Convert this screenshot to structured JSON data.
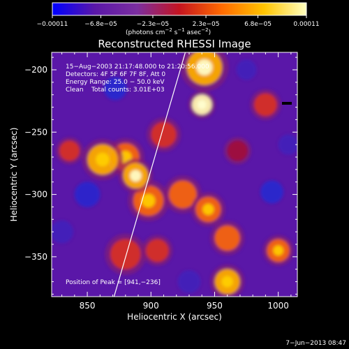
{
  "chart_data": {
    "type": "heatmap",
    "title": "Reconstructed RHESSI Image",
    "xlabel": "Heliocentric X (arcsec)",
    "ylabel": "Heliocentric Y (arcsec)",
    "xlim": [
      822,
      1015
    ],
    "ylim": [
      -382,
      -186
    ],
    "x_ticks": [
      850,
      900,
      950,
      1000
    ],
    "x_tick_labels": [
      "850",
      "900",
      "950",
      "1000"
    ],
    "y_ticks": [
      -200,
      -250,
      -300,
      -350
    ],
    "y_tick_labels": [
      "−200",
      "−250",
      "−300",
      "−350"
    ],
    "colorbar": {
      "min": -0.00011,
      "max": 0.00011,
      "ticks": [
        -0.00011,
        -6.8e-05,
        -2.3e-05,
        2.3e-05,
        6.8e-05,
        0.00011
      ],
      "tick_labels": [
        "−0.00011",
        "−6.8e−05",
        "−2.3e−05",
        "2.3e−05",
        "6.8e−05",
        "0.00011"
      ],
      "colormap": [
        "#0000ff",
        "#5a17a8",
        "#7b2ea0",
        "#c51420",
        "#ff6a00",
        "#ffc400",
        "#ffffc0"
      ]
    },
    "colorbar_unit_parts": {
      "a": "(photons cm",
      "b": "−2",
      "c": " s",
      "d": "−1",
      "e": " asec",
      "f": "−2",
      "g": ")"
    },
    "annotations": [
      "15−Aug−2003 21:17:48.000 to 21:20:56.000",
      "Detectors: 4F 5F 6F 7F 8F, Att 0",
      "Energy Range: 25.0 − 50.0 keV",
      "Clean    Total counts: 3.01E+03"
    ],
    "peak_label": "Position of Peak = [941,−236]",
    "peak_position": [
      941,
      -236
    ],
    "limb_line": {
      "x": [
        871,
        927
      ],
      "y": [
        -382,
        -186
      ]
    },
    "grid": false,
    "sources": [
      {
        "x": 942,
        "y": -198,
        "v": 0.9,
        "s": 14
      },
      {
        "x": 940,
        "y": -228,
        "v": 1.0,
        "s": 8
      },
      {
        "x": 910,
        "y": -252,
        "v": 0.55,
        "s": 10
      },
      {
        "x": 862,
        "y": -272,
        "v": 0.85,
        "s": 12
      },
      {
        "x": 880,
        "y": -270,
        "v": 0.75,
        "s": 11
      },
      {
        "x": 888,
        "y": -285,
        "v": 0.9,
        "s": 10
      },
      {
        "x": 898,
        "y": -305,
        "v": 0.8,
        "s": 12
      },
      {
        "x": 925,
        "y": -300,
        "v": 0.7,
        "s": 11
      },
      {
        "x": 945,
        "y": -312,
        "v": 0.75,
        "s": 10
      },
      {
        "x": 960,
        "y": -335,
        "v": 0.7,
        "s": 10
      },
      {
        "x": 880,
        "y": -348,
        "v": 0.65,
        "s": 12
      },
      {
        "x": 990,
        "y": -228,
        "v": 0.6,
        "s": 9
      },
      {
        "x": 1000,
        "y": -345,
        "v": 0.75,
        "s": 9
      },
      {
        "x": 960,
        "y": -370,
        "v": 0.85,
        "s": 10
      },
      {
        "x": 836,
        "y": -265,
        "v": 0.55,
        "s": 8
      },
      {
        "x": 905,
        "y": -345,
        "v": 0.55,
        "s": 9
      },
      {
        "x": 968,
        "y": -265,
        "v": 0.45,
        "s": 8
      },
      {
        "x": 850,
        "y": -300,
        "v": -0.4,
        "s": 10
      },
      {
        "x": 830,
        "y": -330,
        "v": -0.35,
        "s": 9
      },
      {
        "x": 872,
        "y": -215,
        "v": -0.5,
        "s": 9
      },
      {
        "x": 995,
        "y": -298,
        "v": -0.45,
        "s": 9
      },
      {
        "x": 930,
        "y": -370,
        "v": -0.3,
        "s": 9
      },
      {
        "x": 975,
        "y": -200,
        "v": -0.3,
        "s": 8
      },
      {
        "x": 1008,
        "y": -260,
        "v": -0.3,
        "s": 8
      }
    ]
  }
}
